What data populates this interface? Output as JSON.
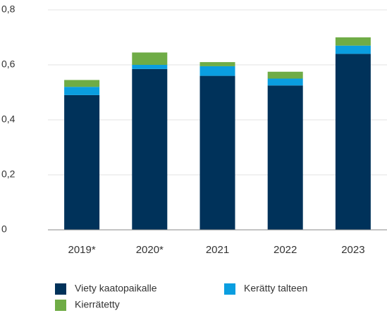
{
  "chart_data": {
    "type": "stacked_bar",
    "categories": [
      "2019*",
      "2020*",
      "2021",
      "2022",
      "2023"
    ],
    "series": [
      {
        "name": "Viety kaatopaikalle",
        "color": "#00325a",
        "values": [
          0.49,
          0.585,
          0.56,
          0.525,
          0.64
        ]
      },
      {
        "name": "Kerätty talteen",
        "color": "#0a9ee0",
        "values": [
          0.03,
          0.015,
          0.035,
          0.025,
          0.03
        ]
      },
      {
        "name": "Kierrätetty",
        "color": "#6fac46",
        "values": [
          0.025,
          0.045,
          0.015,
          0.025,
          0.03
        ]
      }
    ],
    "ylim": [
      0,
      0.8
    ],
    "yticks": [
      0,
      {
        "value": 0.2,
        "label": "0,2"
      },
      {
        "value": 0.4,
        "label": "0,4"
      },
      {
        "value": 0.6,
        "label": "0,6"
      },
      {
        "value": 0.8,
        "label": "0,8"
      }
    ],
    "grid": true,
    "legend": "bottom"
  }
}
